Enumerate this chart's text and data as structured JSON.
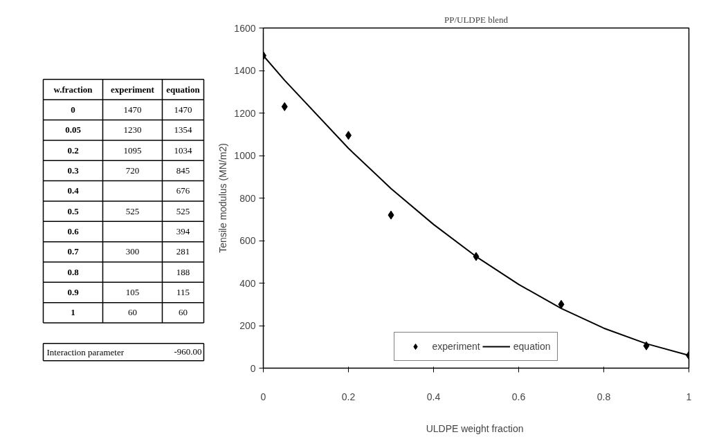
{
  "chart_data": [
    {
      "type": "other",
      "categories": [
        "w.fraction",
        "experiment",
        "equation"
      ],
      "cell_labels": [
        [
          "0",
          "1470",
          "1470"
        ],
        [
          "0.05",
          "1230",
          "1354"
        ],
        [
          "0.2",
          "1095",
          "1034"
        ],
        [
          "0.3",
          "720",
          "845"
        ],
        [
          "0.4",
          null,
          "676"
        ],
        [
          "0.5",
          "525",
          "525"
        ],
        [
          "0.6",
          null,
          "394"
        ],
        [
          "0.7",
          "300",
          "281"
        ],
        [
          "0.8",
          null,
          "188"
        ],
        [
          "0.9",
          "105",
          "115"
        ],
        [
          "1",
          "60",
          "60"
        ]
      ],
      "annotations": [
        "Interaction parameter",
        "-960.00"
      ]
    },
    {
      "type": "scatter",
      "title": "PP/ULDPE blend",
      "xlabel": "ULDPE  weight fraction",
      "ylabel": "Tensile modulus (MN/m2)",
      "x": [
        0,
        0.05,
        0.2,
        0.3,
        0.4,
        0.5,
        0.6,
        0.7,
        0.8,
        0.9,
        1
      ],
      "series": [
        {
          "name": "experiment",
          "marker": "diamond",
          "color": "#000000",
          "values": [
            1470,
            1230,
            1095,
            720,
            null,
            525,
            null,
            300,
            null,
            105,
            60
          ]
        },
        {
          "name": "equation",
          "type": "line",
          "line_style": "solid",
          "color": "#000000",
          "values": [
            1470,
            1354,
            1034,
            845,
            676,
            525,
            394,
            281,
            188,
            115,
            60
          ]
        }
      ],
      "xlim": [
        0,
        1
      ],
      "xticks": [
        0,
        0.2,
        0.4,
        0.6,
        0.8,
        1
      ],
      "ylim": [
        0,
        1600
      ],
      "yticks": [
        0,
        200,
        400,
        600,
        800,
        1000,
        1200,
        1400,
        1600
      ],
      "grid": false,
      "legend": "bottom"
    }
  ]
}
